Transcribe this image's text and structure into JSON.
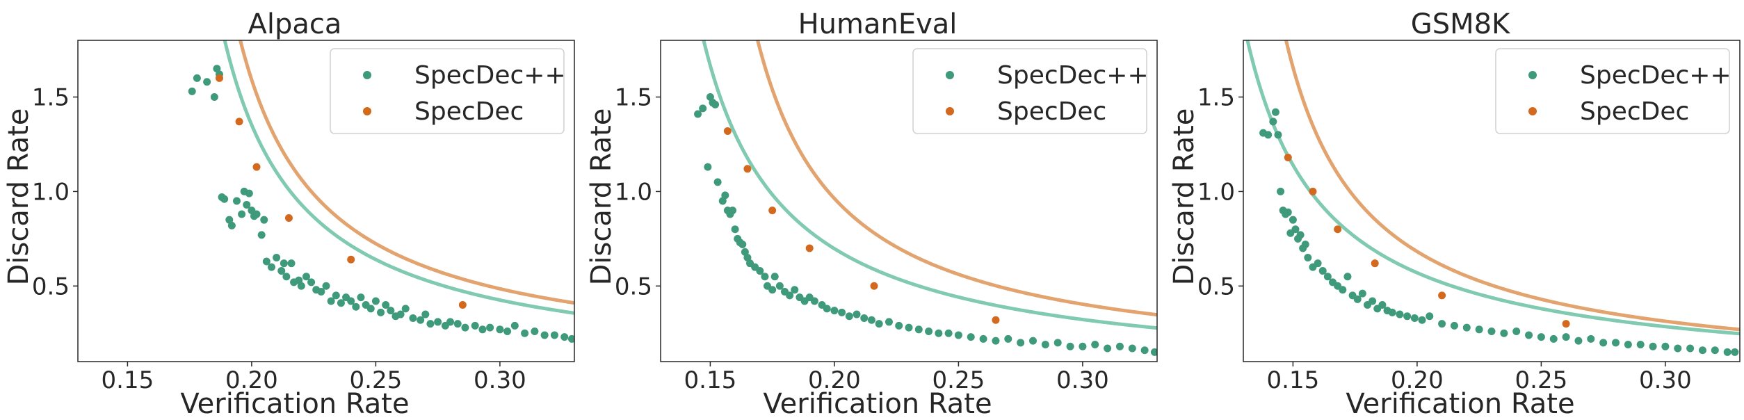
{
  "figure": {
    "background": "#ffffff"
  },
  "chart_data": [
    {
      "type": "scatter",
      "title": "Alpaca",
      "xlabel": "Verification Rate",
      "ylabel": "Discard Rate",
      "xlim": [
        0.13,
        0.33
      ],
      "ylim": [
        0.1,
        1.8
      ],
      "xticks": [
        0.15,
        0.2,
        0.25,
        0.3
      ],
      "xtick_labels": [
        "0.15",
        "0.20",
        "0.25",
        "0.30"
      ],
      "yticks": [
        0.5,
        1.0,
        1.5
      ],
      "ytick_labels": [
        "0.5",
        "1.0",
        "1.5"
      ],
      "grid": false,
      "legend": {
        "position": "top-right",
        "entries": [
          "SpecDec++",
          "SpecDec"
        ]
      },
      "series": [
        {
          "name": "SpecDec++",
          "color": "#3e9a7a",
          "fit_curve": {
            "color": "#7fcab0",
            "a": 0.057,
            "b": 0.157,
            "c": 0.027
          },
          "x": [
            0.176,
            0.178,
            0.182,
            0.185,
            0.186,
            0.187,
            0.188,
            0.189,
            0.191,
            0.192,
            0.194,
            0.196,
            0.197,
            0.198,
            0.199,
            0.2,
            0.201,
            0.202,
            0.204,
            0.205,
            0.206,
            0.208,
            0.21,
            0.212,
            0.213,
            0.214,
            0.216,
            0.217,
            0.219,
            0.22,
            0.222,
            0.224,
            0.226,
            0.228,
            0.23,
            0.232,
            0.234,
            0.236,
            0.238,
            0.24,
            0.242,
            0.244,
            0.246,
            0.248,
            0.25,
            0.252,
            0.254,
            0.256,
            0.258,
            0.26,
            0.262,
            0.265,
            0.268,
            0.27,
            0.272,
            0.275,
            0.278,
            0.28,
            0.283,
            0.286,
            0.29,
            0.293,
            0.296,
            0.3,
            0.303,
            0.306,
            0.31,
            0.314,
            0.318,
            0.322,
            0.326,
            0.329
          ],
          "y": [
            1.53,
            1.6,
            1.58,
            1.5,
            1.65,
            1.62,
            0.97,
            0.96,
            0.85,
            0.82,
            0.95,
            0.88,
            1.0,
            0.93,
            0.99,
            0.9,
            0.87,
            0.88,
            0.77,
            0.85,
            0.63,
            0.6,
            0.65,
            0.58,
            0.62,
            0.55,
            0.62,
            0.52,
            0.53,
            0.5,
            0.55,
            0.52,
            0.48,
            0.47,
            0.5,
            0.42,
            0.45,
            0.41,
            0.44,
            0.42,
            0.39,
            0.44,
            0.4,
            0.38,
            0.42,
            0.36,
            0.4,
            0.37,
            0.34,
            0.35,
            0.38,
            0.33,
            0.32,
            0.35,
            0.3,
            0.31,
            0.29,
            0.31,
            0.3,
            0.28,
            0.29,
            0.27,
            0.28,
            0.27,
            0.26,
            0.29,
            0.25,
            0.26,
            0.24,
            0.24,
            0.23,
            0.22
          ]
        },
        {
          "name": "SpecDec",
          "color": "#d2691e",
          "fit_curve": {
            "color": "#e2a36e",
            "a": 0.058,
            "b": 0.162,
            "c": 0.065
          },
          "x": [
            0.187,
            0.195,
            0.202,
            0.215,
            0.24,
            0.285
          ],
          "y": [
            1.6,
            1.37,
            1.13,
            0.86,
            0.64,
            0.4
          ]
        }
      ]
    },
    {
      "type": "scatter",
      "title": "HumanEval",
      "xlabel": "Verification Rate",
      "ylabel": "Discard Rate",
      "xlim": [
        0.13,
        0.33
      ],
      "ylim": [
        0.1,
        1.8
      ],
      "xticks": [
        0.15,
        0.2,
        0.25,
        0.3
      ],
      "xtick_labels": [
        "0.15",
        "0.20",
        "0.25",
        "0.30"
      ],
      "yticks": [
        0.5,
        1.0,
        1.5
      ],
      "ytick_labels": [
        "0.5",
        "1.0",
        "1.5"
      ],
      "grid": false,
      "legend": {
        "position": "top-right",
        "entries": [
          "SpecDec++",
          "SpecDec"
        ]
      },
      "series": [
        {
          "name": "SpecDec++",
          "color": "#3e9a7a",
          "fit_curve": {
            "color": "#7fcab0",
            "a": 0.06,
            "b": 0.114,
            "c": 0.0
          },
          "x": [
            0.145,
            0.147,
            0.149,
            0.15,
            0.151,
            0.152,
            0.153,
            0.155,
            0.156,
            0.157,
            0.158,
            0.159,
            0.16,
            0.161,
            0.162,
            0.163,
            0.164,
            0.165,
            0.166,
            0.168,
            0.17,
            0.172,
            0.173,
            0.175,
            0.176,
            0.178,
            0.18,
            0.182,
            0.184,
            0.186,
            0.188,
            0.19,
            0.192,
            0.195,
            0.197,
            0.2,
            0.203,
            0.206,
            0.209,
            0.212,
            0.215,
            0.218,
            0.222,
            0.226,
            0.23,
            0.234,
            0.238,
            0.242,
            0.246,
            0.25,
            0.255,
            0.26,
            0.265,
            0.27,
            0.275,
            0.28,
            0.285,
            0.29,
            0.295,
            0.3,
            0.305,
            0.31,
            0.315,
            0.32,
            0.325,
            0.329
          ],
          "y": [
            1.41,
            1.44,
            1.13,
            1.5,
            1.47,
            1.46,
            1.05,
            0.95,
            0.98,
            0.9,
            0.88,
            0.9,
            0.8,
            0.75,
            0.73,
            0.72,
            0.68,
            0.65,
            0.62,
            0.6,
            0.58,
            0.55,
            0.5,
            0.48,
            0.55,
            0.5,
            0.47,
            0.45,
            0.48,
            0.44,
            0.42,
            0.44,
            0.42,
            0.4,
            0.38,
            0.37,
            0.36,
            0.34,
            0.35,
            0.33,
            0.32,
            0.3,
            0.31,
            0.29,
            0.28,
            0.27,
            0.26,
            0.25,
            0.25,
            0.24,
            0.23,
            0.22,
            0.21,
            0.22,
            0.2,
            0.21,
            0.19,
            0.2,
            0.18,
            0.18,
            0.19,
            0.17,
            0.18,
            0.17,
            0.16,
            0.15
          ]
        },
        {
          "name": "SpecDec",
          "color": "#d2691e",
          "fit_curve": {
            "color": "#e2a36e",
            "a": 0.06,
            "b": 0.135,
            "c": 0.04
          },
          "x": [
            0.157,
            0.165,
            0.175,
            0.19,
            0.216,
            0.265
          ],
          "y": [
            1.32,
            1.12,
            0.9,
            0.7,
            0.5,
            0.32
          ]
        }
      ]
    },
    {
      "type": "scatter",
      "title": "GSM8K",
      "xlabel": "Verification Rate",
      "ylabel": "Discard Rate",
      "xlim": [
        0.13,
        0.33
      ],
      "ylim": [
        0.1,
        1.8
      ],
      "xticks": [
        0.15,
        0.2,
        0.25,
        0.3
      ],
      "xtick_labels": [
        "0.15",
        "0.20",
        "0.25",
        "0.30"
      ],
      "yticks": [
        0.5,
        1.0,
        1.5
      ],
      "ytick_labels": [
        "0.5",
        "1.0",
        "1.5"
      ],
      "grid": false,
      "legend": {
        "position": "top-right",
        "entries": [
          "SpecDec++",
          "SpecDec"
        ]
      },
      "series": [
        {
          "name": "SpecDec++",
          "color": "#3e9a7a",
          "fit_curve": {
            "color": "#7fcab0",
            "a": 0.057,
            "b": 0.1,
            "c": 0.0
          },
          "x": [
            0.138,
            0.14,
            0.142,
            0.143,
            0.144,
            0.145,
            0.146,
            0.147,
            0.148,
            0.149,
            0.15,
            0.151,
            0.152,
            0.153,
            0.154,
            0.155,
            0.156,
            0.158,
            0.16,
            0.162,
            0.164,
            0.166,
            0.168,
            0.17,
            0.172,
            0.174,
            0.176,
            0.178,
            0.18,
            0.182,
            0.184,
            0.186,
            0.188,
            0.19,
            0.193,
            0.196,
            0.199,
            0.202,
            0.205,
            0.21,
            0.215,
            0.22,
            0.225,
            0.23,
            0.235,
            0.24,
            0.245,
            0.25,
            0.255,
            0.26,
            0.265,
            0.27,
            0.275,
            0.28,
            0.285,
            0.29,
            0.295,
            0.3,
            0.305,
            0.31,
            0.315,
            0.32,
            0.325,
            0.328
          ],
          "y": [
            1.31,
            1.3,
            1.37,
            1.42,
            1.3,
            1.0,
            0.9,
            0.88,
            0.89,
            0.78,
            0.85,
            0.8,
            0.75,
            0.77,
            0.7,
            0.72,
            0.65,
            0.6,
            0.62,
            0.58,
            0.55,
            0.52,
            0.5,
            0.48,
            0.55,
            0.45,
            0.43,
            0.46,
            0.4,
            0.42,
            0.38,
            0.4,
            0.37,
            0.36,
            0.35,
            0.34,
            0.33,
            0.32,
            0.34,
            0.3,
            0.29,
            0.28,
            0.27,
            0.26,
            0.25,
            0.26,
            0.24,
            0.23,
            0.22,
            0.23,
            0.21,
            0.22,
            0.2,
            0.2,
            0.19,
            0.19,
            0.18,
            0.18,
            0.17,
            0.17,
            0.16,
            0.16,
            0.15,
            0.15
          ]
        },
        {
          "name": "SpecDec",
          "color": "#d2691e",
          "fit_curve": {
            "color": "#e2a36e",
            "a": 0.058,
            "b": 0.115,
            "c": 0.0
          },
          "x": [
            0.148,
            0.158,
            0.168,
            0.183,
            0.21,
            0.26
          ],
          "y": [
            1.18,
            1.0,
            0.8,
            0.62,
            0.45,
            0.3
          ]
        }
      ]
    }
  ]
}
